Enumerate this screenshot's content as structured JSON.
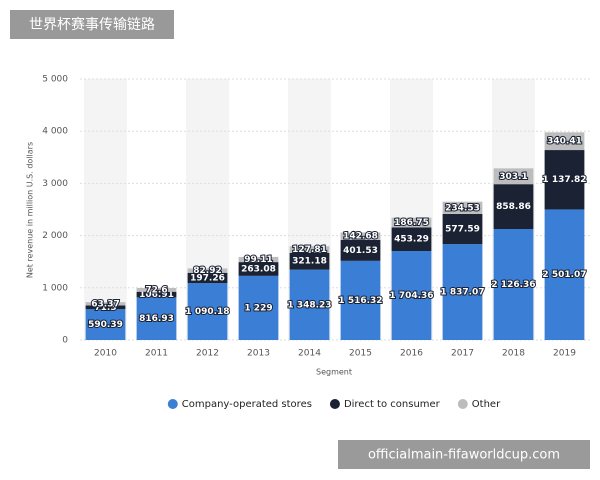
{
  "header": {
    "title": "世界杯赛事传输链路"
  },
  "watermark": "officialmain-fifaworldcup.com",
  "chart_data": {
    "type": "bar",
    "stacked": true,
    "y_label": "Net revenue in million U.S. dollars",
    "x_label": "Segment",
    "categories": [
      "2010",
      "2011",
      "2012",
      "2013",
      "2014",
      "2015",
      "2016",
      "2017",
      "2018",
      "2019"
    ],
    "series": [
      {
        "name": "Company-operated stores",
        "color": "#3a7fd5",
        "values": [
          590.39,
          816.93,
          1090.18,
          1229,
          1348.23,
          1516.32,
          1704.36,
          1837.07,
          2126.36,
          2501.07
        ],
        "value_labels": [
          "590.39",
          "816.93",
          "1 090.18",
          "1 229",
          "1 348.23",
          "1 516.32",
          "1 704.36",
          "1 837.07",
          "2 126.36",
          "2 501.07"
        ]
      },
      {
        "name": "Direct to consumer",
        "color": "#1a2233",
        "values": [
          71.3,
          106.91,
          197.26,
          263.08,
          321.18,
          401.53,
          453.29,
          577.59,
          858.86,
          1137.82
        ],
        "value_labels": [
          "71.3",
          "106.91",
          "197.26",
          "263.08",
          "321.18",
          "401.53",
          "453.29",
          "577.59",
          "858.86",
          "1 137.82"
        ]
      },
      {
        "name": "Other",
        "color": "#bdbdbd",
        "values": [
          63.37,
          72.6,
          82.92,
          99.11,
          127.81,
          142.68,
          186.75,
          234.53,
          303.1,
          340.41
        ],
        "value_labels": [
          "63.37",
          "72.6",
          "82.92",
          "99.11",
          "127.81",
          "142.68",
          "186.75",
          "234.53",
          "303.1",
          "340.41"
        ]
      }
    ],
    "ylim": [
      0,
      5000
    ],
    "yticks": [
      0,
      {
        "value": 1000,
        "label": "1 000"
      },
      {
        "value": 2000,
        "label": "2 000"
      },
      {
        "value": 3000,
        "label": "3 000"
      },
      {
        "value": 4000,
        "label": "4 000"
      },
      {
        "value": 5000,
        "label": "5 000"
      }
    ],
    "grid": true,
    "legend": "bottom"
  }
}
